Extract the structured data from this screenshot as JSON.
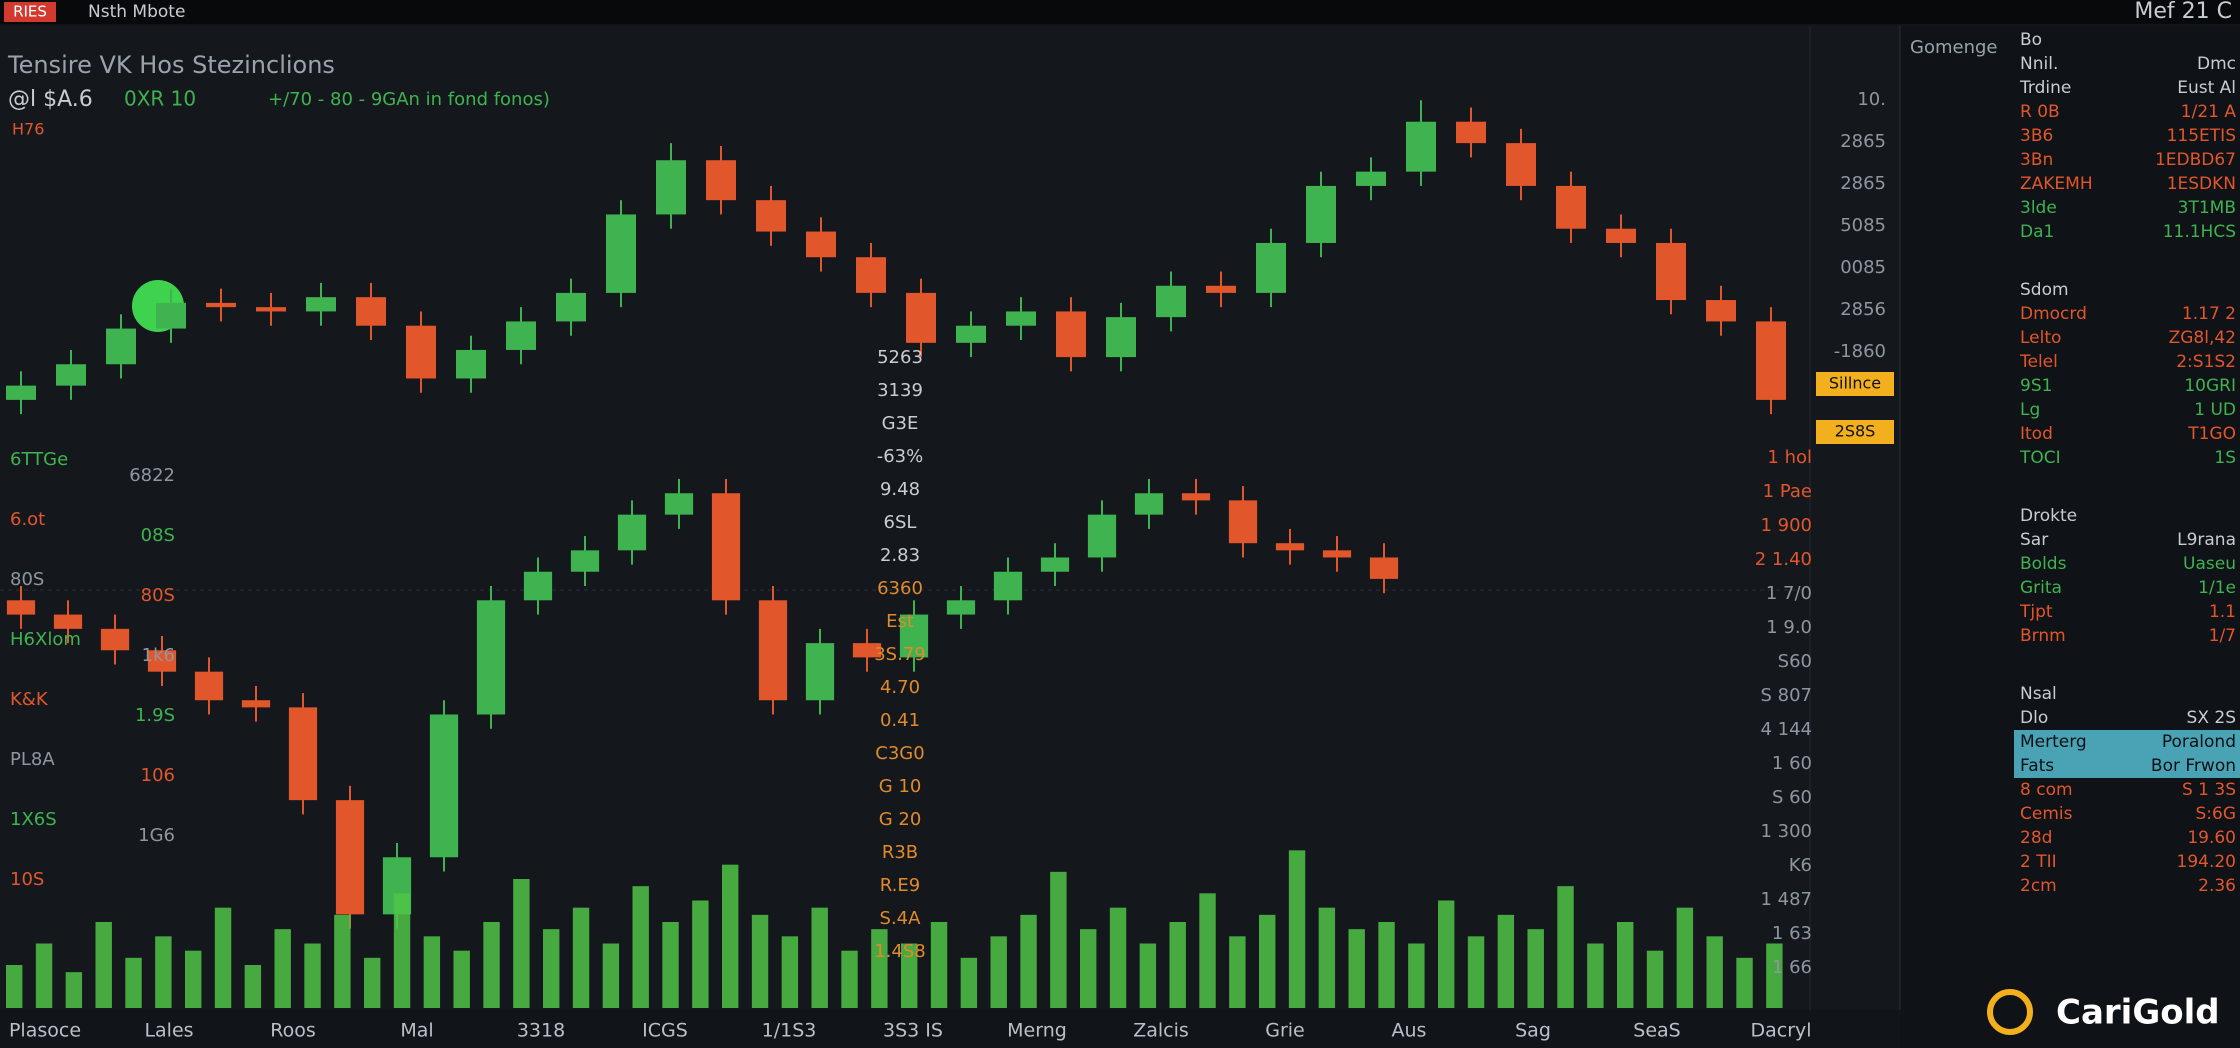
{
  "topbar": {
    "badge": "RIES",
    "title": "Nsth Mbote",
    "clock": "Mef 21 C"
  },
  "chart_data": {
    "type": "candlestick",
    "title": "Tensire VK Hos Stezinclions",
    "subtitle": [
      "@l $A.6",
      "0XR 10",
      "+/70 - 80 - 9GAn in fond fonos)"
    ],
    "corner_label": "H76",
    "up_color": "#3fb34f",
    "down_color": "#e2562c",
    "upper": {
      "ylim": [
        0,
        340
      ],
      "open": [
        80,
        90,
        105,
        130,
        148,
        145,
        142,
        152,
        132,
        95,
        115,
        135,
        155,
        210,
        248,
        220,
        198,
        180,
        155,
        120,
        132,
        142,
        110,
        138,
        160,
        155,
        190,
        230,
        240,
        275,
        260,
        230,
        200,
        190,
        150,
        135
      ],
      "high": [
        100,
        115,
        140,
        158,
        158,
        155,
        162,
        162,
        142,
        125,
        145,
        165,
        220,
        260,
        258,
        230,
        208,
        190,
        165,
        142,
        152,
        152,
        148,
        170,
        170,
        200,
        240,
        250,
        290,
        285,
        270,
        240,
        210,
        200,
        160,
        145
      ],
      "low": [
        70,
        80,
        95,
        120,
        135,
        132,
        132,
        122,
        85,
        85,
        105,
        125,
        145,
        200,
        210,
        188,
        170,
        145,
        110,
        110,
        122,
        100,
        100,
        128,
        145,
        145,
        180,
        220,
        230,
        250,
        220,
        190,
        180,
        140,
        125,
        70
      ],
      "close": [
        90,
        105,
        130,
        148,
        145,
        142,
        152,
        132,
        95,
        115,
        135,
        155,
        210,
        248,
        220,
        198,
        180,
        155,
        120,
        132,
        142,
        110,
        138,
        160,
        155,
        190,
        230,
        240,
        275,
        260,
        230,
        200,
        190,
        150,
        135,
        80
      ]
    },
    "lower": {
      "ylim": [
        0,
        400
      ],
      "open": [
        280,
        270,
        260,
        245,
        230,
        210,
        205,
        140,
        60,
        100,
        200,
        280,
        300,
        315,
        340,
        355,
        280,
        210,
        250,
        240,
        270,
        280,
        300,
        310,
        340,
        355,
        350,
        320,
        315,
        310
      ],
      "high": [
        290,
        280,
        270,
        255,
        240,
        220,
        215,
        150,
        110,
        210,
        290,
        310,
        325,
        350,
        365,
        365,
        290,
        260,
        260,
        280,
        290,
        310,
        320,
        350,
        365,
        365,
        360,
        330,
        325,
        320
      ],
      "low": [
        260,
        250,
        235,
        220,
        200,
        195,
        130,
        50,
        50,
        90,
        190,
        270,
        290,
        305,
        330,
        270,
        200,
        200,
        230,
        230,
        260,
        270,
        290,
        300,
        330,
        340,
        310,
        305,
        300,
        285
      ],
      "close": [
        270,
        260,
        245,
        230,
        210,
        205,
        140,
        60,
        100,
        200,
        280,
        300,
        315,
        340,
        355,
        280,
        210,
        250,
        240,
        270,
        280,
        300,
        310,
        340,
        355,
        350,
        320,
        315,
        310,
        295
      ]
    },
    "volume": {
      "ylim": [
        0,
        120
      ],
      "color": "#4fc447",
      "values": [
        30,
        45,
        25,
        60,
        35,
        50,
        40,
        70,
        30,
        55,
        45,
        65,
        35,
        80,
        50,
        40,
        60,
        90,
        55,
        70,
        45,
        85,
        60,
        75,
        100,
        65,
        50,
        70,
        40,
        55,
        45,
        60,
        35,
        50,
        65,
        95,
        55,
        70,
        45,
        60,
        80,
        50,
        65,
        110,
        70,
        55,
        60,
        45,
        75,
        50,
        65,
        55,
        85,
        45,
        60,
        40,
        70,
        50,
        35,
        45
      ]
    },
    "x_labels": [
      "Plasoce",
      "Lales",
      "Roos",
      "Mal",
      "3318",
      "ICGS",
      "1/1S3",
      "3S3 IS",
      "Merng",
      "Zalcis",
      "Grie",
      "Aus",
      "Sag",
      "SeaS",
      "Dacryl"
    ],
    "right_axis": [
      "10.",
      "2865",
      "2865",
      "5085",
      "0085",
      "2856",
      "-1860"
    ],
    "price_flags": [
      "Sillnce",
      "2S8S"
    ],
    "right_axis_low": [
      "1 hol",
      "1 Pae",
      "1 900",
      "2 1.40",
      "1 7/0",
      "1 9.0",
      "S60",
      "S 807",
      "4 144",
      "1 60",
      "S 60",
      "1 300",
      "K6",
      "1 487",
      "1 63",
      "1 66"
    ],
    "left_labels": [
      "6TTGe",
      "6822",
      "6.ot",
      "08S",
      "80S",
      "80S",
      "H6Xlom",
      "1k6",
      "K&K",
      "1.9S",
      "PL8A",
      "106",
      "1X6S",
      "1G6",
      "10S"
    ],
    "mid_labels": [
      "5263",
      "3139",
      "G3E",
      "-63%",
      "9.48",
      "6SL",
      "2.83",
      "6360",
      "Est",
      "3S.79",
      "4.70",
      "0.41",
      "C3G0",
      "G 10",
      "G 20",
      "R3B",
      "R.E9",
      "S.4A",
      "1.4S8"
    ]
  },
  "side_panel": {
    "header": "Gomenge",
    "groups": [
      {
        "title": "Bo",
        "rows": [
          {
            "left": "Nnil.",
            "right": "Dmc"
          },
          {
            "left": "Trdine",
            "right": "Eust Al"
          },
          {
            "left": "R 0B",
            "right": "1/21 A",
            "color": "#e2562c"
          },
          {
            "left": "3B6",
            "right": "115ETIS",
            "color": "#e2562c"
          },
          {
            "left": "3Bn",
            "right": "1EDBD67",
            "color": "#e2562c"
          },
          {
            "left": "ZAKEMH",
            "right": "1ESDKN",
            "color": "#e2562c"
          },
          {
            "left": "3lde",
            "right": "3T1MB",
            "color": "#3fb34f"
          },
          {
            "left": "Da1",
            "right": "11.1HCS",
            "color": "#3fb34f"
          }
        ]
      },
      {
        "title": "Sdom",
        "rows": [
          {
            "left": "Dmocrd",
            "right": "1.17 2",
            "color": "#e2562c"
          },
          {
            "left": "Lelto",
            "right": "ZG8l,42",
            "color": "#e2562c"
          },
          {
            "left": "Telel",
            "right": "2:S1S2",
            "color": "#e2562c"
          },
          {
            "left": "9S1",
            "right": "10GRI",
            "color": "#3fb34f"
          },
          {
            "left": "Lg",
            "right": "1 UD",
            "color": "#3fb34f"
          },
          {
            "left": "Itod",
            "right": "T1GO",
            "color": "#e2562c"
          },
          {
            "left": "TOCI",
            "right": "1S",
            "color": "#3fb34f"
          }
        ]
      },
      {
        "title": "Drokte",
        "rows": [
          {
            "left": "Sar",
            "right": "L9rana"
          },
          {
            "left": "Bolds",
            "right": "Uaseu",
            "color": "#3fb34f"
          },
          {
            "left": "Grita",
            "right": "1/1e",
            "color": "#3fb34f"
          },
          {
            "left": "Tjpt",
            "right": "1.1",
            "color": "#e2562c"
          },
          {
            "left": "Brnm",
            "right": "1/7",
            "color": "#e2562c"
          }
        ]
      },
      {
        "title": "Nsal",
        "rows": [
          {
            "left": "Dlo",
            "right": "SX 2S"
          },
          {
            "left": "Merterg",
            "right": "Poralond",
            "highlight": true
          },
          {
            "left": "Fats",
            "right": "Bor Frwon",
            "highlight": true
          },
          {
            "left": "8 com",
            "right": "S 1 3S",
            "color": "#e2562c"
          },
          {
            "left": "Cemis",
            "right": "S:6G",
            "color": "#e2562c"
          },
          {
            "left": "28d",
            "right": "19.60",
            "color": "#e2562c"
          },
          {
            "left": "2 TII",
            "right": "194.20",
            "color": "#e2562c"
          },
          {
            "left": "2cm",
            "right": "2.36",
            "color": "#e2562c"
          }
        ]
      }
    ]
  },
  "logo": "CariGold"
}
